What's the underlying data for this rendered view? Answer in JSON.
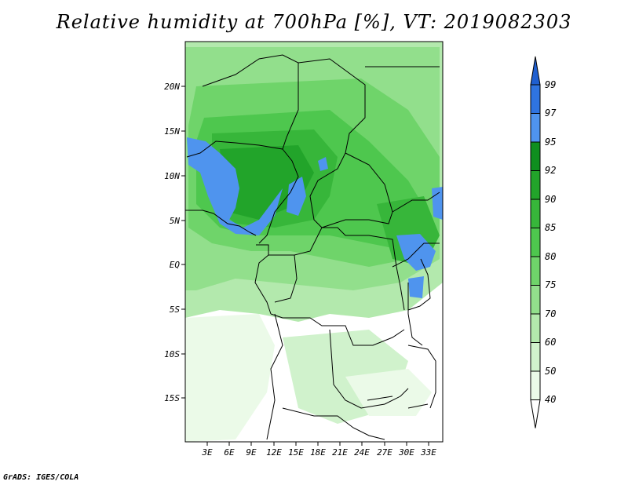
{
  "title": "Relative humidity at 700hPa [%], VT: 2019082303",
  "credit": "GrADS: IGES/COLA",
  "map": {
    "lat_labels": [
      "20N",
      "15N",
      "10N",
      "5N",
      "EQ",
      "5S",
      "10S",
      "15S"
    ],
    "lon_labels": [
      "3E",
      "6E",
      "9E",
      "12E",
      "15E",
      "18E",
      "21E",
      "24E",
      "27E",
      "30E",
      "33E"
    ]
  },
  "colorbar": {
    "levels": [
      "99",
      "97",
      "95",
      "92",
      "90",
      "85",
      "80",
      "75",
      "70",
      "60",
      "50",
      "40"
    ],
    "colors": [
      "#1f5fd0",
      "#2f74e0",
      "#4f94ee",
      "#0f8f1f",
      "#22a42a",
      "#37b63a",
      "#4ec74e",
      "#6fd46a",
      "#92df8c",
      "#b3e9ad",
      "#d0f2cc",
      "#ebfae8",
      "#ffffff"
    ]
  }
}
